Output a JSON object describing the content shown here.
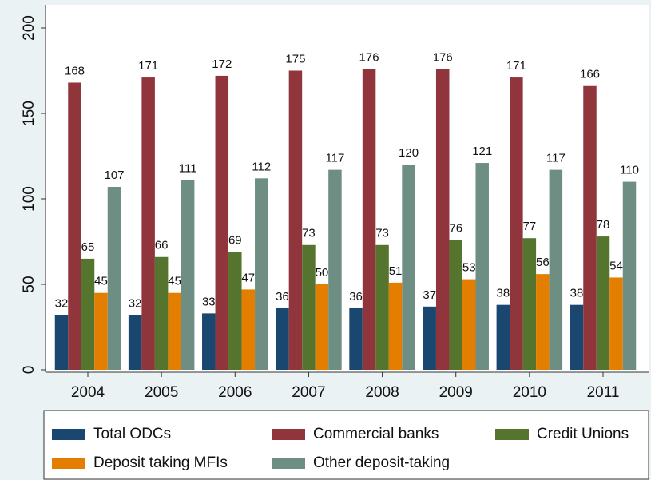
{
  "chart_data": {
    "type": "bar",
    "categories": [
      "2004",
      "2005",
      "2006",
      "2007",
      "2008",
      "2009",
      "2010",
      "2011"
    ],
    "series": [
      {
        "name": "Total ODCs",
        "color": "#1a476f",
        "values": [
          32,
          32,
          33,
          36,
          36,
          37,
          38,
          38
        ]
      },
      {
        "name": "Commercial banks",
        "color": "#90353b",
        "values": [
          168,
          171,
          172,
          175,
          176,
          176,
          171,
          166
        ]
      },
      {
        "name": "Credit Unions",
        "color": "#55752f",
        "values": [
          65,
          66,
          69,
          73,
          73,
          76,
          77,
          78
        ]
      },
      {
        "name": "Deposit taking MFIs",
        "color": "#e37e00",
        "values": [
          45,
          45,
          47,
          50,
          51,
          53,
          56,
          54
        ]
      },
      {
        "name": "Other deposit-taking",
        "color": "#6e8e84",
        "values": [
          107,
          111,
          112,
          117,
          120,
          121,
          117,
          110
        ]
      }
    ],
    "ylim": [
      0,
      200
    ],
    "yticks": [
      0,
      50,
      100,
      150,
      200
    ],
    "grid": false,
    "legend": "bottom"
  }
}
